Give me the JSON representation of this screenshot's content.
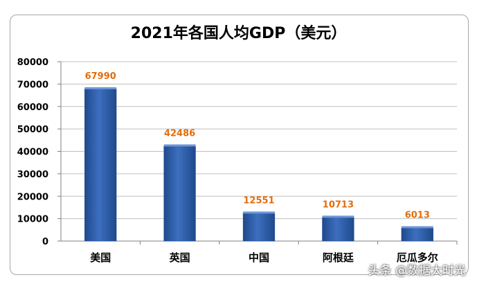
{
  "title": "2021年各国人均GDP（美元）",
  "watermark": "头条 @数据大时光",
  "chart_data": {
    "type": "bar",
    "title": "2021年各国人均GDP（美元）",
    "categories": [
      "美国",
      "英国",
      "中国",
      "阿根廷",
      "厄瓜多尔"
    ],
    "values": [
      67990,
      42486,
      12551,
      10713,
      6013
    ],
    "data_labels": [
      "67990",
      "42486",
      "12551",
      "10713",
      "6013"
    ],
    "yticks": [
      "0",
      "10000",
      "20000",
      "30000",
      "40000",
      "50000",
      "60000",
      "70000",
      "80000"
    ],
    "ylim": [
      0,
      80000
    ],
    "grid": true,
    "legend": "none",
    "colors": {
      "bar": "#3d6fbf",
      "bar_dark": "#1f4a8c",
      "label": "#e46c0a",
      "grid": "#bfbfbf"
    }
  }
}
